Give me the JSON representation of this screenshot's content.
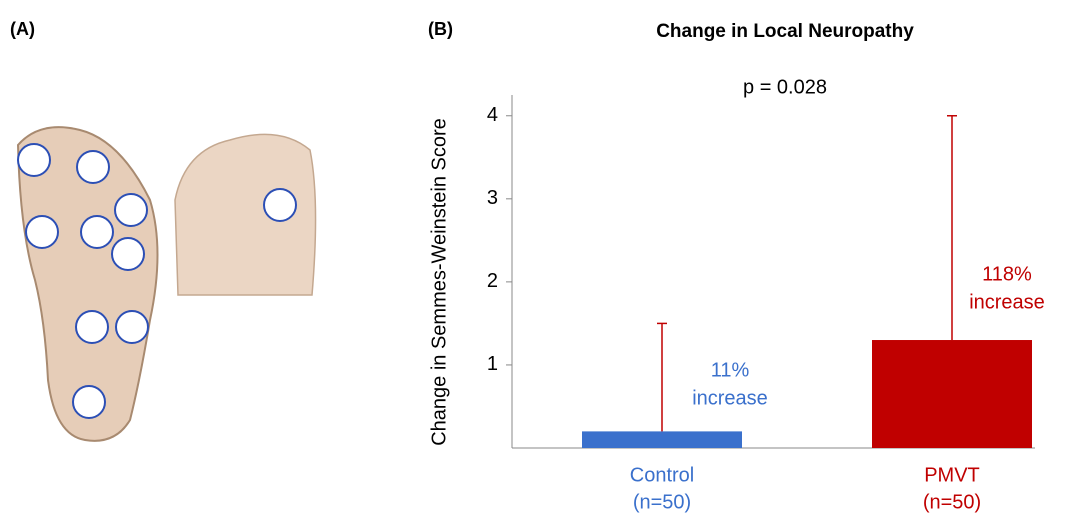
{
  "panels": {
    "a_label": "(A)",
    "b_label": "(B)"
  },
  "chart_data": {
    "type": "bar",
    "title": "Change in Local Neuropathy",
    "y_label": "Change in Semmes-Weinstein Score",
    "annotation": "p = 0.028",
    "categories": [
      "Control",
      "PMVT"
    ],
    "category_notes": [
      "(n=50)",
      "(n=50)"
    ],
    "values": [
      0.2,
      1.3
    ],
    "errors": [
      1.3,
      2.7
    ],
    "colors": [
      "#3a70cc",
      "#c00000"
    ],
    "error_color": "#c00000",
    "bar_notes": [
      [
        "11%",
        "increase"
      ],
      [
        "118%",
        "increase"
      ]
    ],
    "ylim": [
      0,
      4.25
    ],
    "yticks": [
      1,
      2,
      3,
      4
    ]
  }
}
